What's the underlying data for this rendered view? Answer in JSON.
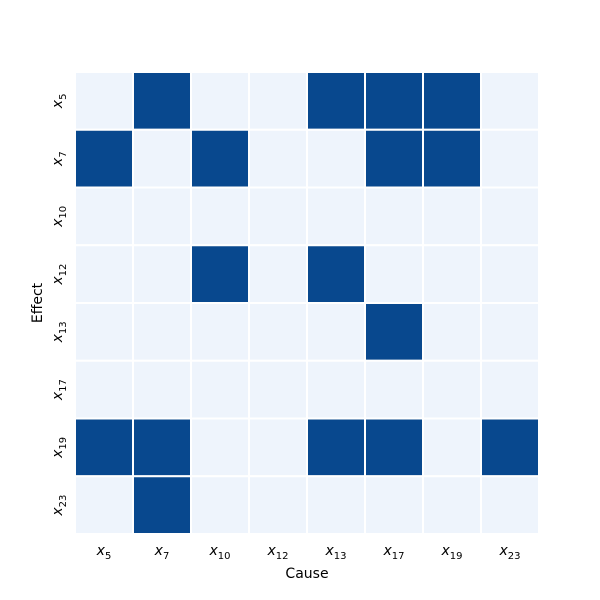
{
  "chart_data": {
    "type": "heatmap",
    "xlabel": "Cause",
    "ylabel": "Effect",
    "x_categories": [
      {
        "base": "x",
        "sub": "5"
      },
      {
        "base": "x",
        "sub": "7"
      },
      {
        "base": "x",
        "sub": "10"
      },
      {
        "base": "x",
        "sub": "12"
      },
      {
        "base": "x",
        "sub": "13"
      },
      {
        "base": "x",
        "sub": "17"
      },
      {
        "base": "x",
        "sub": "19"
      },
      {
        "base": "x",
        "sub": "23"
      }
    ],
    "y_categories": [
      {
        "base": "x",
        "sub": "5"
      },
      {
        "base": "x",
        "sub": "7"
      },
      {
        "base": "x",
        "sub": "10"
      },
      {
        "base": "x",
        "sub": "12"
      },
      {
        "base": "x",
        "sub": "13"
      },
      {
        "base": "x",
        "sub": "17"
      },
      {
        "base": "x",
        "sub": "19"
      },
      {
        "base": "x",
        "sub": "23"
      }
    ],
    "matrix": [
      [
        0,
        1,
        0,
        0,
        1,
        1,
        1,
        0
      ],
      [
        1,
        0,
        1,
        0,
        0,
        1,
        1,
        0
      ],
      [
        0,
        0,
        0,
        0,
        0,
        0,
        0,
        0
      ],
      [
        0,
        0,
        1,
        0,
        1,
        0,
        0,
        0
      ],
      [
        0,
        0,
        0,
        0,
        0,
        1,
        0,
        0
      ],
      [
        0,
        0,
        0,
        0,
        0,
        0,
        0,
        0
      ],
      [
        1,
        1,
        0,
        0,
        1,
        1,
        0,
        1
      ],
      [
        0,
        1,
        0,
        0,
        0,
        0,
        0,
        0
      ]
    ],
    "colors": {
      "0": "#eef4fc",
      "1": "#08488e",
      "gridline": "#ffffff"
    },
    "colorbar": false,
    "grid": true
  }
}
